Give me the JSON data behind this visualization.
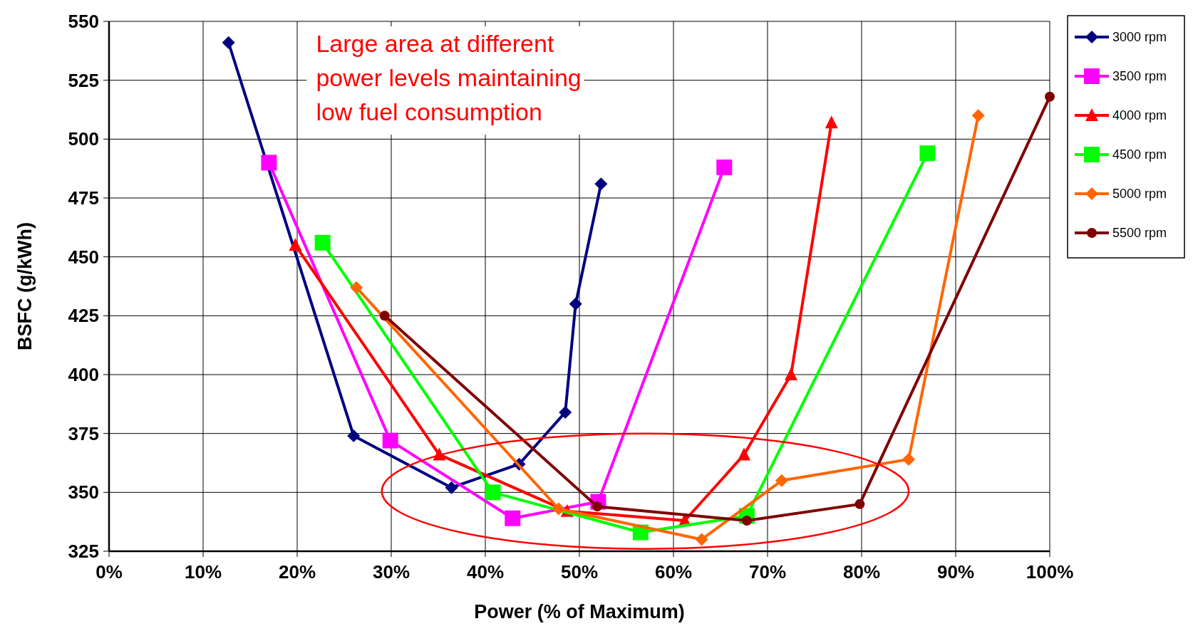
{
  "chart_data": {
    "type": "line",
    "xlabel": "Power (% of Maximum)",
    "ylabel": "BSFC (g/kWh)",
    "xlim": [
      0,
      100
    ],
    "xticks": [
      {
        "value": 0,
        "label": "0%"
      },
      {
        "value": 10,
        "label": "10%"
      },
      {
        "value": 20,
        "label": "20%"
      },
      {
        "value": 30,
        "label": "30%"
      },
      {
        "value": 40,
        "label": "40%"
      },
      {
        "value": 50,
        "label": "50%"
      },
      {
        "value": 60,
        "label": "60%"
      },
      {
        "value": 70,
        "label": "70%"
      },
      {
        "value": 80,
        "label": "80%"
      },
      {
        "value": 90,
        "label": "90%"
      },
      {
        "value": 100,
        "label": "100%"
      }
    ],
    "ylim": [
      325,
      550
    ],
    "yticks": [
      325,
      350,
      375,
      400,
      425,
      450,
      475,
      500,
      525,
      550
    ],
    "grid": true,
    "legend": "top right",
    "annotations": [
      "Large area at different\npower levels maintaining\nlow fuel consumption"
    ],
    "series": [
      {
        "name": "3000 rpm",
        "color": "#000080",
        "marker": "diamond",
        "x": [
          12.7,
          26,
          36.4,
          43.6,
          48.5,
          49.6,
          52.3
        ],
        "values": [
          541,
          374,
          352,
          362,
          384,
          430,
          481
        ]
      },
      {
        "name": "3500 rpm",
        "color": "#ff00ff",
        "marker": "square",
        "x": [
          17,
          29.9,
          42.9,
          52,
          65.4
        ],
        "values": [
          490,
          372,
          339,
          346,
          488
        ]
      },
      {
        "name": "4000 rpm",
        "color": "#ff0000",
        "marker": "triangle",
        "x": [
          19.8,
          35.1,
          48.7,
          61.2,
          67.5,
          72.5,
          76.8
        ],
        "values": [
          455,
          366,
          342,
          338,
          366,
          400,
          507
        ]
      },
      {
        "name": "4500 rpm",
        "color": "#00ff00",
        "marker": "square",
        "x": [
          22.7,
          40.8,
          56.5,
          67.8,
          87
        ],
        "values": [
          456,
          350,
          333,
          340,
          494
        ]
      },
      {
        "name": "5000 rpm",
        "color": "#ff6600",
        "marker": "diamond",
        "x": [
          26.3,
          47.8,
          63,
          71.5,
          85,
          92.4
        ],
        "values": [
          437,
          343,
          330,
          355,
          364,
          510
        ]
      },
      {
        "name": "5500 rpm",
        "color": "#800000",
        "marker": "circle",
        "x": [
          29.3,
          51.9,
          67.8,
          79.8,
          100
        ],
        "values": [
          425,
          344,
          338,
          345,
          518
        ]
      }
    ]
  }
}
